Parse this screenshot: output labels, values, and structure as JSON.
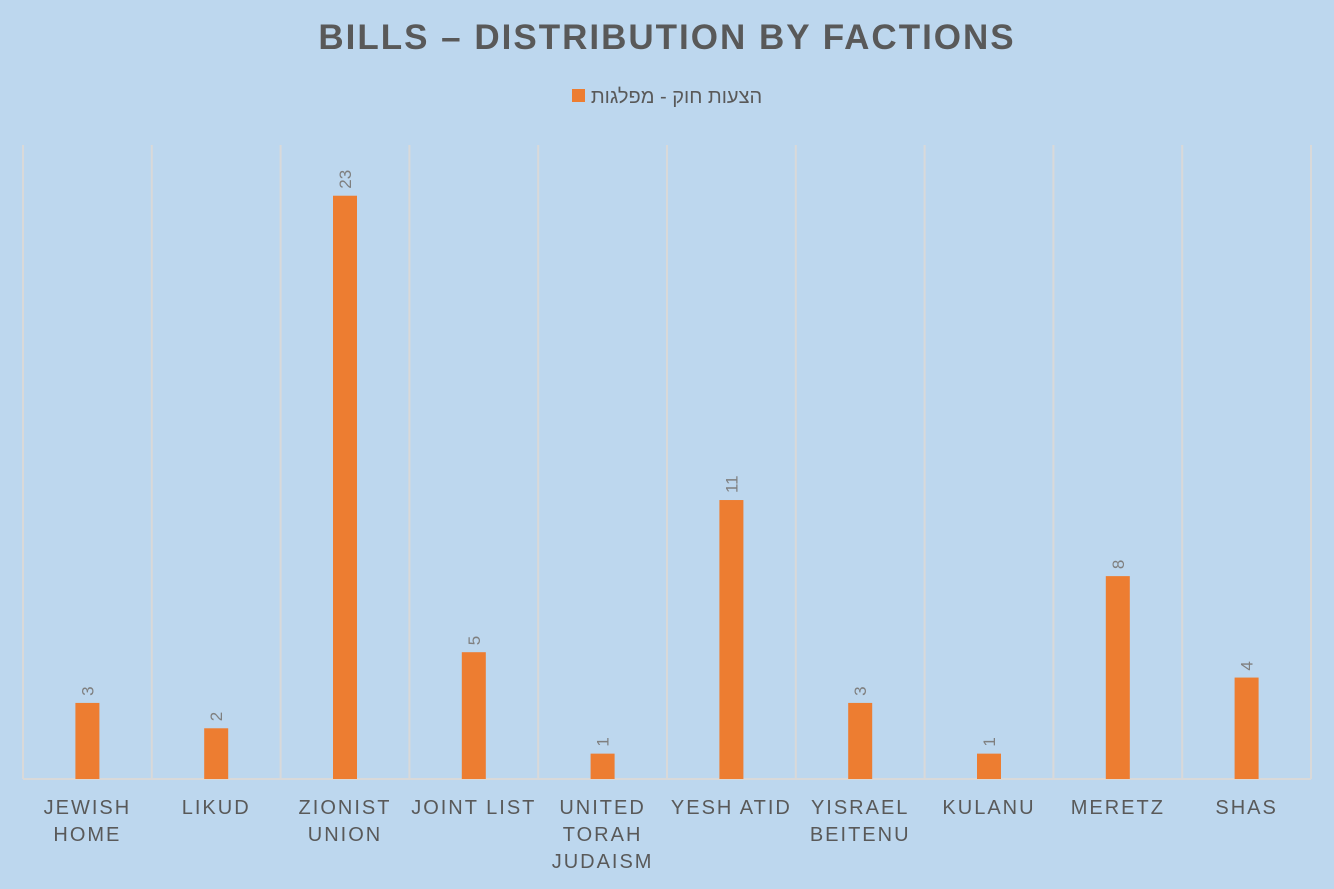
{
  "chart_data": {
    "type": "bar",
    "title": "BILLS – DISTRIBUTION BY FACTIONS",
    "categories": [
      "JEWISH HOME",
      "LIKUD",
      "ZIONIST UNION",
      "JOINT LIST",
      "UNITED TORAH JUDAISM",
      "YESH ATID",
      "YISRAEL BEITENU",
      "KULANU",
      "MERETZ",
      "SHAS"
    ],
    "series": [
      {
        "name": "הצעות חוק - מפלגות",
        "values": [
          3,
          2,
          23,
          5,
          1,
          11,
          3,
          1,
          8,
          4
        ],
        "color": "#ed7d31"
      }
    ],
    "data_labels": true,
    "legend_position": "top",
    "grid": "vertical category separators",
    "ylim": [
      0,
      25
    ]
  }
}
